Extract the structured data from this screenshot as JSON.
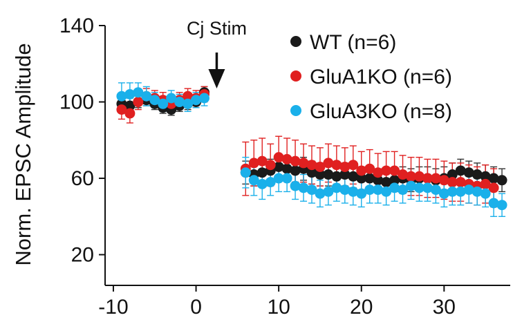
{
  "chart_data": {
    "type": "scatter",
    "title": "",
    "xlabel": "",
    "ylabel": "Norm. EPSC Amplitude",
    "xlim": [
      -11,
      38
    ],
    "ylim": [
      5,
      140
    ],
    "xticks": [
      -10,
      0,
      10,
      20,
      30
    ],
    "yticks": [
      20,
      60,
      100,
      140
    ],
    "legend_position": "top-right",
    "annotation": {
      "text": "Cj Stim",
      "x": 2.5
    },
    "grid": false,
    "series": [
      {
        "name": "WT (n=6)",
        "color": "#1a1a1a",
        "errorbar_color": "#333333",
        "x": [
          -9,
          -8,
          -7,
          -6,
          -5,
          -4,
          -3,
          -2,
          -1,
          0,
          1,
          6,
          7,
          8,
          9,
          10,
          11,
          12,
          13,
          14,
          15,
          16,
          17,
          18,
          19,
          20,
          21,
          22,
          23,
          24,
          25,
          26,
          27,
          28,
          29,
          30,
          31,
          32,
          33,
          34,
          35,
          36,
          37
        ],
        "y": [
          99,
          98,
          100,
          101,
          99,
          97,
          96,
          98,
          99,
          100,
          105,
          63,
          62,
          63,
          64,
          66,
          65,
          64,
          65,
          63,
          62,
          62,
          61,
          62,
          61,
          60,
          60,
          59,
          58,
          59,
          60,
          59,
          60,
          60,
          59,
          60,
          62,
          64,
          63,
          62,
          61,
          60,
          59
        ],
        "err": [
          4,
          4,
          3,
          3,
          3,
          3,
          3,
          3,
          3,
          3,
          3,
          6,
          6,
          6,
          6,
          6,
          6,
          6,
          6,
          6,
          6,
          6,
          6,
          6,
          6,
          6,
          6,
          6,
          6,
          6,
          6,
          6,
          6,
          6,
          6,
          6,
          6,
          6,
          6,
          6,
          6,
          6,
          6
        ]
      },
      {
        "name": "GluA1KO (n=6)",
        "color": "#e02020",
        "errorbar_color": "#e02020",
        "x": [
          -9,
          -8,
          -7,
          -6,
          -5,
          -4,
          -3,
          -2,
          -1,
          0,
          1,
          6,
          7,
          8,
          9,
          10,
          11,
          12,
          13,
          14,
          15,
          16,
          17,
          18,
          19,
          20,
          21,
          22,
          23,
          24,
          25,
          26,
          27,
          28,
          29,
          30,
          31,
          32,
          33,
          34,
          35,
          36
        ],
        "y": [
          96,
          94,
          100,
          103,
          102,
          101,
          99,
          101,
          103,
          102,
          104,
          65,
          68,
          69,
          67,
          71,
          70,
          69,
          68,
          67,
          66,
          68,
          67,
          66,
          67,
          64,
          65,
          63,
          64,
          64,
          62,
          61,
          61,
          60,
          60,
          59,
          58,
          58,
          57,
          56,
          57,
          55
        ],
        "err": [
          5,
          5,
          4,
          4,
          4,
          4,
          4,
          4,
          4,
          4,
          4,
          14,
          12,
          12,
          11,
          11,
          11,
          11,
          10,
          10,
          10,
          10,
          10,
          10,
          10,
          10,
          10,
          10,
          10,
          10,
          10,
          10,
          10,
          10,
          10,
          10,
          10,
          10,
          10,
          10,
          10,
          10
        ]
      },
      {
        "name": "GluA3KO (n=8)",
        "color": "#1ab0ea",
        "errorbar_color": "#1ab0ea",
        "x": [
          -9,
          -8,
          -7,
          -6,
          -5,
          -4,
          -3,
          -2,
          -1,
          0,
          1,
          6,
          7,
          8,
          9,
          10,
          11,
          12,
          13,
          14,
          15,
          16,
          17,
          18,
          19,
          20,
          21,
          22,
          23,
          24,
          25,
          26,
          27,
          28,
          29,
          30,
          31,
          32,
          33,
          34,
          35,
          36,
          37
        ],
        "y": [
          103,
          104,
          105,
          103,
          101,
          99,
          102,
          100,
          99,
          101,
          102,
          63,
          59,
          57,
          58,
          60,
          60,
          56,
          55,
          54,
          52,
          53,
          55,
          54,
          53,
          52,
          54,
          54,
          53,
          55,
          54,
          56,
          55,
          55,
          54,
          52,
          53,
          53,
          54,
          53,
          52,
          47,
          46
        ],
        "err": [
          7,
          6,
          5,
          5,
          4,
          4,
          4,
          4,
          4,
          4,
          4,
          8,
          8,
          8,
          7,
          7,
          7,
          7,
          7,
          7,
          7,
          7,
          7,
          7,
          7,
          7,
          7,
          7,
          7,
          7,
          7,
          7,
          7,
          7,
          7,
          7,
          7,
          7,
          7,
          7,
          7,
          7,
          6
        ]
      }
    ]
  }
}
